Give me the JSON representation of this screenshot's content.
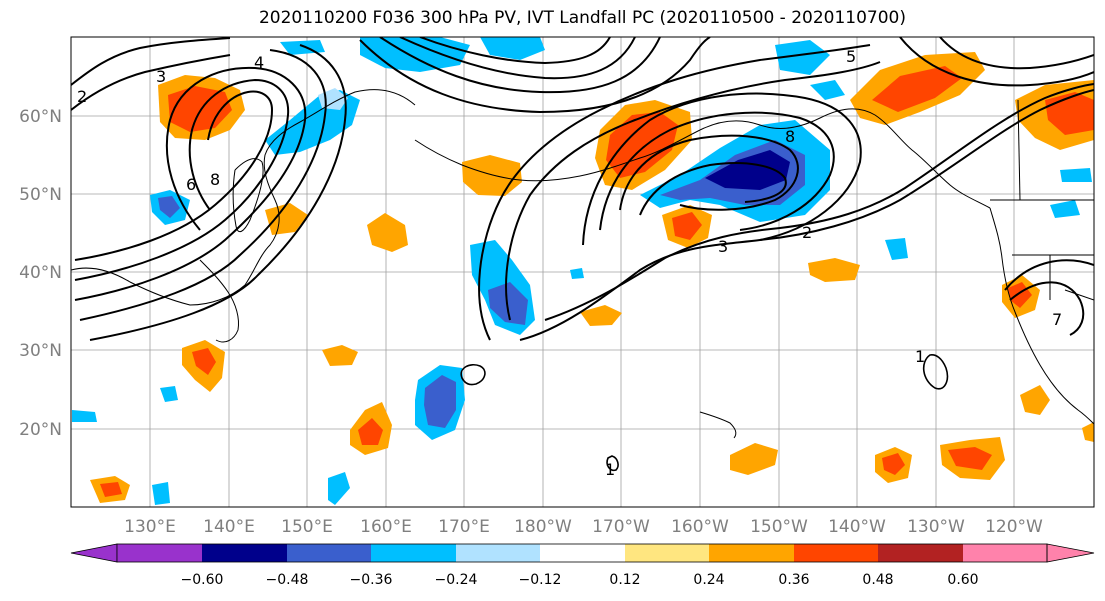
{
  "title": "2020110200 F036 300 hPa PV, IVT Landfall PC (2020110500 - 2020110700)",
  "lat_labels": [
    "60°N",
    "50°N",
    "40°N",
    "30°N",
    "20°N"
  ],
  "lon_labels": [
    "130°E",
    "140°E",
    "150°E",
    "160°E",
    "170°E",
    "180°W",
    "170°W",
    "160°W",
    "150°W",
    "140°W",
    "130°W",
    "120°W"
  ],
  "colorbar": {
    "ticks": [
      "−0.60",
      "−0.48",
      "−0.36",
      "−0.24",
      "−0.12",
      "0.12",
      "0.24",
      "0.36",
      "0.48",
      "0.60"
    ],
    "colors": [
      "#9932cc",
      "#00008b",
      "#3a5fcd",
      "#00bfff",
      "#b0e2ff",
      "#ffffff",
      "#ffe680",
      "#ffa500",
      "#ff4500",
      "#b22222",
      "#ff82ab"
    ]
  },
  "contour_labels": [
    "2",
    "4",
    "3",
    "6",
    "8",
    "5",
    "7",
    "1"
  ],
  "colors": {
    "strong_negative": "#00008b",
    "negative": "#3a5fcd",
    "weak_negative": "#00bfff",
    "very_weak_negative": "#b0e2ff",
    "weak_positive": "#ffe680",
    "positive": "#ffa500",
    "strong_positive": "#ff4500",
    "contour": "#000000",
    "coast": "#000000",
    "grid": "#a0a0a0"
  }
}
